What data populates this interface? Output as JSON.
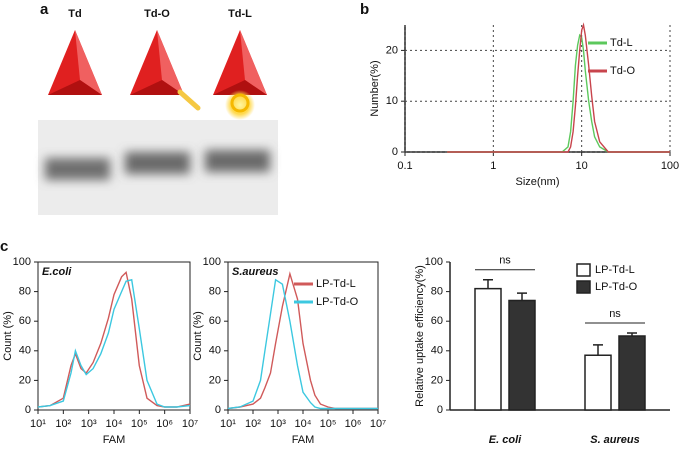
{
  "panel_a": {
    "panel": "a",
    "lanes": [
      "Td",
      "Td-O",
      "Td-L"
    ]
  },
  "chart_data": [
    {
      "type": "line",
      "panel": "b",
      "xlabel": "Size(nm)",
      "ylabel": "Number(%)",
      "xlog": true,
      "frame": "axes",
      "grid": true,
      "legend": "upper right",
      "xlim": [
        0.1,
        100
      ],
      "xticks": [
        0.1,
        1,
        10,
        100
      ],
      "ylim": [
        0,
        25
      ],
      "yticks": [
        0,
        10,
        20
      ],
      "x": [
        0.3,
        1,
        3,
        5,
        6,
        7,
        7.5,
        8,
        8.5,
        9,
        9.5,
        10,
        10.5,
        11,
        12,
        13,
        14,
        16,
        20,
        25,
        40,
        100
      ],
      "series": [
        {
          "name": "Td-L",
          "color": "#5cc85c",
          "values": [
            0,
            0,
            0,
            0,
            0,
            1,
            4,
            10,
            17,
            21,
            23,
            22.5,
            20,
            16,
            10,
            6,
            3,
            1,
            0,
            0,
            0,
            0
          ]
        },
        {
          "name": "Td-O",
          "color": "#c8444c",
          "values": [
            0,
            0,
            0,
            0,
            0,
            0,
            1,
            4,
            9,
            15,
            20,
            24,
            25,
            23,
            17,
            11,
            6,
            2,
            0,
            0,
            0,
            0
          ]
        }
      ]
    },
    {
      "type": "line",
      "panel": "c",
      "annotation": "E.coli",
      "xlabel": "FAM",
      "ylabel": "Count (%)",
      "xlog": true,
      "frame": "box",
      "grid": false,
      "xlim": [
        10,
        10000000
      ],
      "xticks": [
        {
          "value": 10,
          "label": "10¹"
        },
        {
          "value": 100,
          "label": "10²"
        },
        {
          "value": 1000,
          "label": "10³"
        },
        {
          "value": 10000,
          "label": "10⁴"
        },
        {
          "value": 100000,
          "label": "10⁵"
        },
        {
          "value": 1000000,
          "label": "10⁶"
        },
        {
          "value": 10000000,
          "label": "10⁷"
        }
      ],
      "ylim": [
        0,
        100
      ],
      "yticks": [
        0,
        20,
        40,
        60,
        80,
        100
      ],
      "x": [
        10,
        30,
        100,
        200,
        300,
        500,
        800,
        1500,
        3000,
        6000,
        10000,
        20000,
        30000,
        50000,
        100000,
        200000,
        500000,
        1000000,
        3000000,
        10000000
      ],
      "series": [
        {
          "color": "#d05a5a",
          "values": [
            2,
            3,
            8,
            30,
            38,
            28,
            25,
            32,
            45,
            62,
            78,
            90,
            93,
            75,
            30,
            8,
            3,
            2,
            2,
            4
          ]
        },
        {
          "color": "#3cc8e0",
          "values": [
            2,
            3,
            6,
            25,
            40,
            30,
            24,
            28,
            38,
            52,
            68,
            80,
            87,
            88,
            55,
            20,
            4,
            2,
            2,
            3
          ]
        }
      ]
    },
    {
      "type": "line",
      "annotation": "S.aureus",
      "xlabel": "FAM",
      "ylabel": "Count (%)",
      "xlog": true,
      "frame": "box",
      "grid": false,
      "legend": "upper right",
      "xlim": [
        10,
        10000000
      ],
      "xticks": [
        {
          "value": 10,
          "label": "10¹"
        },
        {
          "value": 100,
          "label": "10²"
        },
        {
          "value": 1000,
          "label": "10³"
        },
        {
          "value": 10000,
          "label": "10⁴"
        },
        {
          "value": 100000,
          "label": "10⁵"
        },
        {
          "value": 1000000,
          "label": "10⁶"
        },
        {
          "value": 10000000,
          "label": "10⁷"
        }
      ],
      "ylim": [
        0,
        100
      ],
      "yticks": [
        0,
        20,
        40,
        60,
        80,
        100
      ],
      "x": [
        10,
        30,
        100,
        200,
        300,
        500,
        800,
        1500,
        3000,
        6000,
        10000,
        20000,
        30000,
        50000,
        100000,
        200000,
        500000,
        1000000,
        3000000,
        10000000
      ],
      "series": [
        {
          "name": "LP-Td-L",
          "color": "#d05a5a",
          "values": [
            1,
            2,
            4,
            8,
            15,
            25,
            45,
            70,
            92,
            75,
            45,
            20,
            10,
            4,
            2,
            1,
            1,
            1,
            1,
            1
          ]
        },
        {
          "name": "LP-Td-O",
          "color": "#3cc8e0",
          "values": [
            1,
            2,
            6,
            20,
            40,
            65,
            88,
            85,
            60,
            30,
            12,
            5,
            2,
            1,
            1,
            1,
            1,
            1,
            1,
            1
          ]
        }
      ]
    },
    {
      "type": "bar",
      "ylabel": "Relative uptake efficiency(%)",
      "frame": "axes",
      "grid": false,
      "legend": "upper right",
      "categories": [
        "E. coli",
        "S. aureus"
      ],
      "ylim": [
        0,
        100
      ],
      "yticks": [
        0,
        20,
        40,
        60,
        80,
        100
      ],
      "annotations": [
        "ns",
        "ns"
      ],
      "series": [
        {
          "name": "LP-Td-L",
          "color": "#ffffff",
          "values": [
            82,
            37
          ],
          "errors": [
            6,
            7
          ]
        },
        {
          "name": "LP-Td-O",
          "color": "#333333",
          "values": [
            74,
            50
          ],
          "errors": [
            5,
            2
          ]
        }
      ]
    }
  ]
}
